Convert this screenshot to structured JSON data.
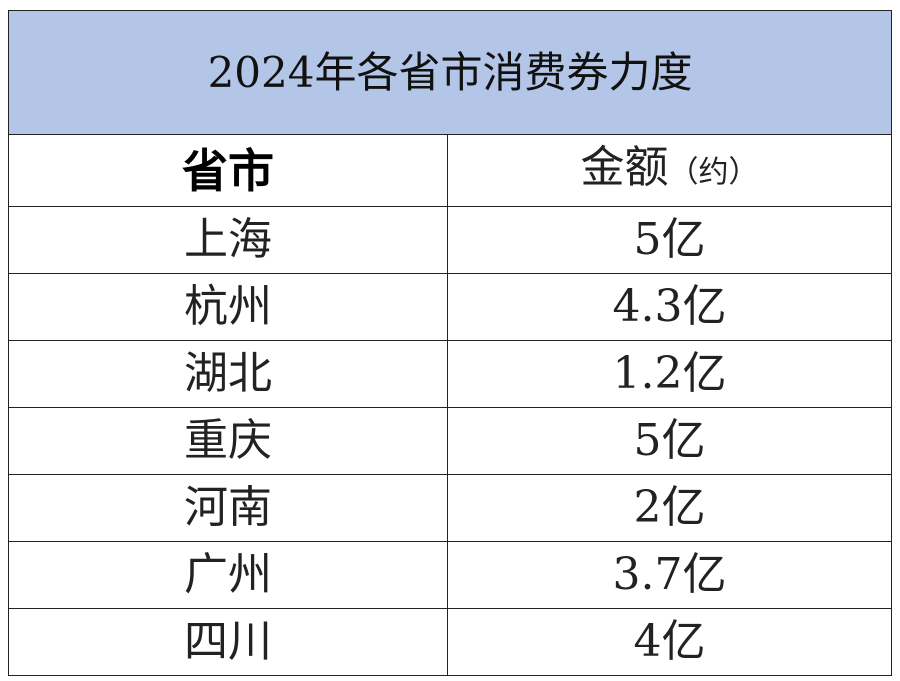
{
  "table": {
    "title": "2024年各省市消费券力度",
    "header": {
      "region": "省市",
      "amount": "金额",
      "amount_note": "（约）"
    },
    "rows": [
      [
        "上海",
        "5亿"
      ],
      [
        "杭州",
        "4.3亿"
      ],
      [
        "湖北",
        "1.2亿"
      ],
      [
        "重庆",
        "5亿"
      ],
      [
        "河南",
        "2亿"
      ],
      [
        "广州",
        "3.7亿"
      ],
      [
        "四川",
        "4亿"
      ]
    ]
  }
}
